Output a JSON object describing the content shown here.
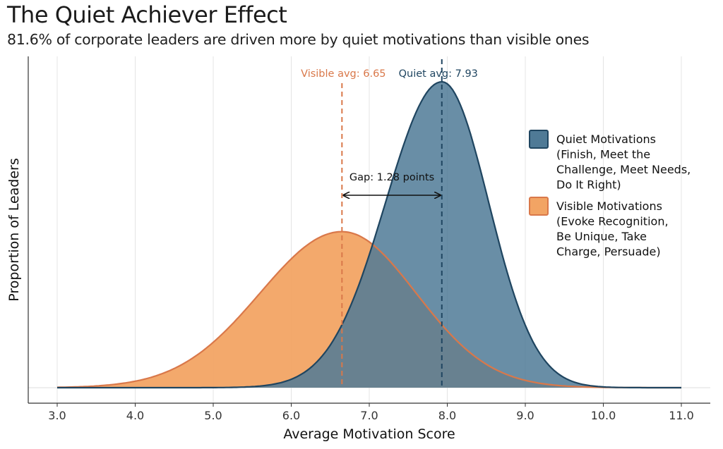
{
  "title": "The Quiet Achiever Effect",
  "subtitle": "81.6% of corporate leaders are driven more by quiet motivations than visible ones",
  "colors": {
    "quiet_fill": "#4f7a96",
    "quiet_line": "#1f4560",
    "visible_fill": "#f2a464",
    "visible_line": "#d9784a",
    "grid": "#e4e4e4",
    "axis": "#333333"
  },
  "chart_data": {
    "type": "area",
    "title": "The Quiet Achiever Effect",
    "subtitle": "81.6% of corporate leaders are driven more by quiet motivations than visible ones",
    "xlabel": "Average Motivation Score",
    "ylabel": "Proportion of Leaders",
    "xlim": [
      3.0,
      11.0
    ],
    "x_ticks": [
      "3.0",
      "4.0",
      "5.0",
      "6.0",
      "7.0",
      "8.0",
      "9.0",
      "10.0",
      "11.0"
    ],
    "grid": "vertical",
    "legend_position": "right",
    "series": [
      {
        "name": "Quiet Motivations (Finish, Meet the Challenge, Meet Needs, Do It Right)",
        "legend_lines": [
          "Quiet Motivations",
          "(Finish, Meet the",
          "Challenge, Meet Needs,",
          "Do It Right)"
        ],
        "mean": 7.93,
        "sd_left": 0.72,
        "sd_right": 0.6,
        "peak_relative": 1.0
      },
      {
        "name": "Visible Motivations (Evoke Recognition, Be Unique, Take Charge, Persuade)",
        "legend_lines": [
          "Visible Motivations",
          "(Evoke Recognition,",
          "Be Unique, Take",
          "Charge, Persuade)"
        ],
        "mean": 6.65,
        "sd_left": 1.05,
        "sd_right": 0.95,
        "peak_relative": 0.51
      }
    ],
    "annotations": {
      "visible_avg_label": "Visible avg: 6.65",
      "quiet_avg_label": "Quiet avg: 7.93",
      "gap_label": "Gap: 1.28 points",
      "visible_avg": 6.65,
      "quiet_avg": 7.93
    }
  }
}
